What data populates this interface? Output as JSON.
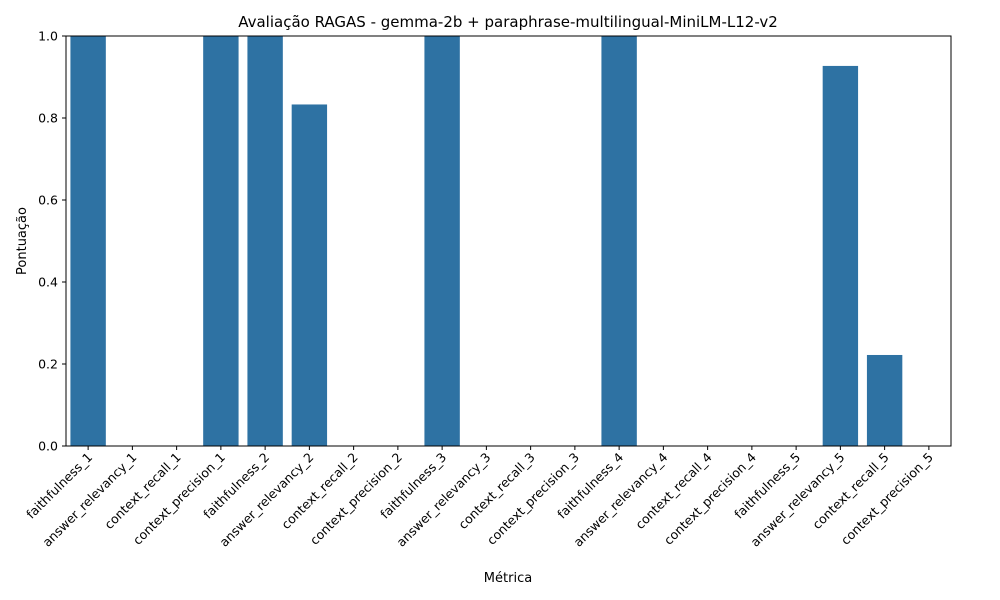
{
  "chart_data": {
    "type": "bar",
    "title": "Avaliação RAGAS - gemma-2b + paraphrase-multilingual-MiniLM-L12-v2",
    "xlabel": "Métrica",
    "ylabel": "Pontuação",
    "ylim": [
      0,
      1.0
    ],
    "yticks": [
      "0.0",
      "0.2",
      "0.4",
      "0.6",
      "0.8",
      "1.0"
    ],
    "grid": false,
    "bar_color": "#2e72a3",
    "categories": [
      "faithfulness_1",
      "answer_relevancy_1",
      "context_recall_1",
      "context_precision_1",
      "faithfulness_2",
      "answer_relevancy_2",
      "context_recall_2",
      "context_precision_2",
      "faithfulness_3",
      "answer_relevancy_3",
      "context_recall_3",
      "context_precision_3",
      "faithfulness_4",
      "answer_relevancy_4",
      "context_recall_4",
      "context_precision_4",
      "faithfulness_5",
      "answer_relevancy_5",
      "context_recall_5",
      "context_precision_5"
    ],
    "values": [
      1.0,
      0.0,
      0.0,
      1.0,
      1.0,
      0.833,
      0.0,
      0.0,
      1.0,
      0.0,
      0.0,
      0.0,
      1.0,
      0.0,
      0.0,
      0.0,
      0.0,
      0.927,
      0.222,
      0.0
    ]
  }
}
